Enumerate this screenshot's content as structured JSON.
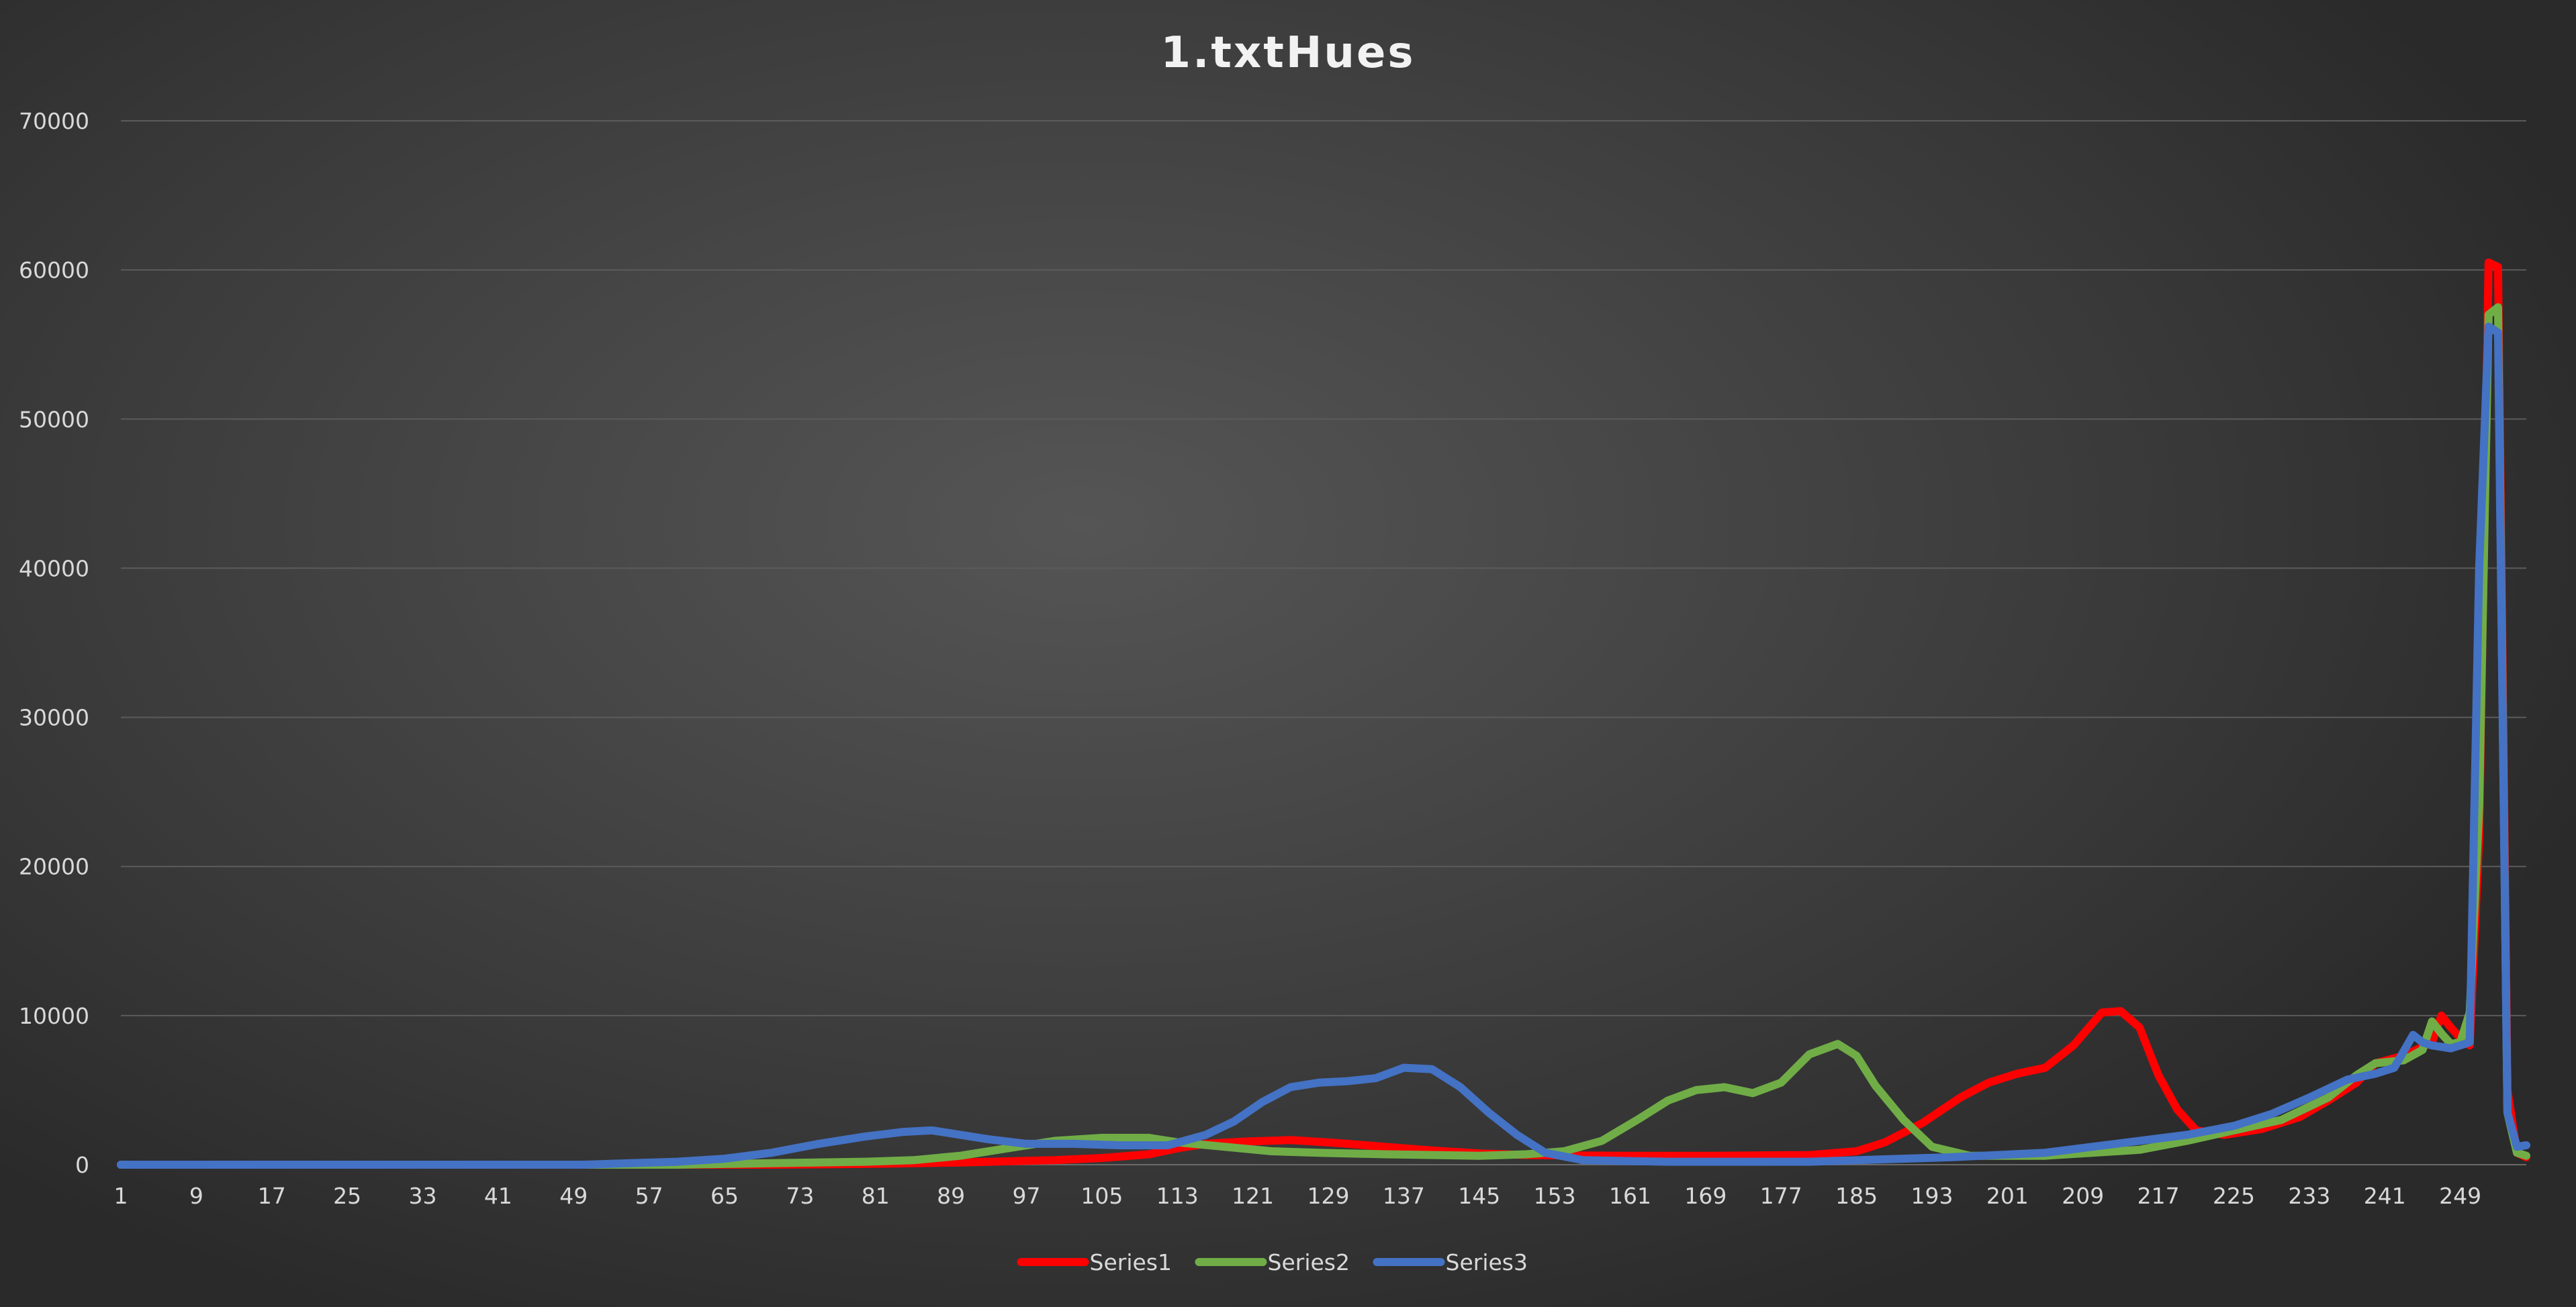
{
  "chart_data": {
    "type": "line",
    "title": "1.txtHues",
    "xlabel": "",
    "ylabel": "",
    "ylim": [
      0,
      70000
    ],
    "y_ticks": [
      0,
      10000,
      20000,
      30000,
      40000,
      50000,
      60000,
      70000
    ],
    "x_range": [
      1,
      256
    ],
    "x_tick_labels": [
      1,
      9,
      17,
      25,
      33,
      41,
      49,
      57,
      65,
      73,
      81,
      89,
      97,
      105,
      113,
      121,
      129,
      137,
      145,
      153,
      161,
      169,
      177,
      185,
      193,
      201,
      209,
      217,
      225,
      233,
      241,
      249
    ],
    "grid": "horizontal",
    "legend_position": "bottom",
    "colors": {
      "Series1": "#ff0000",
      "Series2": "#70ad47",
      "Series3": "#4472c4"
    },
    "series": [
      {
        "name": "Series1",
        "points": [
          [
            1,
            0
          ],
          [
            50,
            0
          ],
          [
            70,
            0
          ],
          [
            80,
            50
          ],
          [
            90,
            150
          ],
          [
            100,
            300
          ],
          [
            105,
            450
          ],
          [
            110,
            700
          ],
          [
            113,
            1100
          ],
          [
            116,
            1400
          ],
          [
            120,
            1550
          ],
          [
            125,
            1650
          ],
          [
            130,
            1450
          ],
          [
            135,
            1200
          ],
          [
            140,
            950
          ],
          [
            145,
            750
          ],
          [
            150,
            650
          ],
          [
            160,
            600
          ],
          [
            170,
            600
          ],
          [
            180,
            650
          ],
          [
            185,
            900
          ],
          [
            188,
            1500
          ],
          [
            192,
            2800
          ],
          [
            196,
            4500
          ],
          [
            199,
            5500
          ],
          [
            202,
            6100
          ],
          [
            205,
            6500
          ],
          [
            208,
            8000
          ],
          [
            211,
            10200
          ],
          [
            213,
            10300
          ],
          [
            215,
            9200
          ],
          [
            217,
            6000
          ],
          [
            219,
            3700
          ],
          [
            221,
            2300
          ],
          [
            224,
            2000
          ],
          [
            228,
            2400
          ],
          [
            232,
            3200
          ],
          [
            235,
            4300
          ],
          [
            238,
            5500
          ],
          [
            240,
            6800
          ],
          [
            243,
            7300
          ],
          [
            246,
            8200
          ],
          [
            247,
            10000
          ],
          [
            248,
            9200
          ],
          [
            249,
            8500
          ],
          [
            250,
            8000
          ],
          [
            251,
            22000
          ],
          [
            252,
            60500
          ],
          [
            253,
            60200
          ],
          [
            254,
            5000
          ],
          [
            255,
            800
          ],
          [
            256,
            500
          ]
        ]
      },
      {
        "name": "Series2",
        "points": [
          [
            1,
            0
          ],
          [
            60,
            0
          ],
          [
            70,
            100
          ],
          [
            80,
            200
          ],
          [
            85,
            300
          ],
          [
            90,
            600
          ],
          [
            95,
            1100
          ],
          [
            100,
            1600
          ],
          [
            105,
            1800
          ],
          [
            110,
            1800
          ],
          [
            113,
            1500
          ],
          [
            118,
            1200
          ],
          [
            123,
            900
          ],
          [
            128,
            800
          ],
          [
            135,
            700
          ],
          [
            145,
            600
          ],
          [
            150,
            700
          ],
          [
            154,
            900
          ],
          [
            158,
            1600
          ],
          [
            162,
            3100
          ],
          [
            165,
            4300
          ],
          [
            168,
            5000
          ],
          [
            171,
            5200
          ],
          [
            174,
            4800
          ],
          [
            177,
            5500
          ],
          [
            180,
            7400
          ],
          [
            183,
            8100
          ],
          [
            185,
            7300
          ],
          [
            187,
            5300
          ],
          [
            190,
            3000
          ],
          [
            193,
            1200
          ],
          [
            197,
            600
          ],
          [
            205,
            600
          ],
          [
            215,
            1000
          ],
          [
            220,
            1600
          ],
          [
            225,
            2300
          ],
          [
            230,
            3000
          ],
          [
            235,
            4500
          ],
          [
            238,
            6000
          ],
          [
            240,
            6800
          ],
          [
            243,
            7000
          ],
          [
            245,
            7700
          ],
          [
            246,
            9600
          ],
          [
            247,
            8800
          ],
          [
            248,
            8100
          ],
          [
            249,
            8200
          ],
          [
            250,
            10200
          ],
          [
            251,
            24000
          ],
          [
            252,
            57000
          ],
          [
            253,
            57500
          ],
          [
            254,
            3500
          ],
          [
            255,
            800
          ],
          [
            256,
            600
          ]
        ]
      },
      {
        "name": "Series3",
        "points": [
          [
            1,
            0
          ],
          [
            50,
            0
          ],
          [
            55,
            100
          ],
          [
            60,
            200
          ],
          [
            65,
            400
          ],
          [
            70,
            800
          ],
          [
            75,
            1400
          ],
          [
            80,
            1900
          ],
          [
            84,
            2200
          ],
          [
            87,
            2300
          ],
          [
            90,
            2000
          ],
          [
            93,
            1700
          ],
          [
            97,
            1400
          ],
          [
            102,
            1400
          ],
          [
            107,
            1300
          ],
          [
            112,
            1300
          ],
          [
            116,
            2000
          ],
          [
            119,
            2900
          ],
          [
            122,
            4200
          ],
          [
            125,
            5200
          ],
          [
            128,
            5500
          ],
          [
            131,
            5600
          ],
          [
            134,
            5800
          ],
          [
            137,
            6500
          ],
          [
            140,
            6400
          ],
          [
            143,
            5200
          ],
          [
            146,
            3500
          ],
          [
            149,
            2000
          ],
          [
            152,
            800
          ],
          [
            156,
            300
          ],
          [
            165,
            200
          ],
          [
            180,
            200
          ],
          [
            195,
            500
          ],
          [
            205,
            800
          ],
          [
            210,
            1200
          ],
          [
            215,
            1600
          ],
          [
            220,
            2000
          ],
          [
            225,
            2600
          ],
          [
            229,
            3400
          ],
          [
            233,
            4500
          ],
          [
            237,
            5700
          ],
          [
            240,
            6100
          ],
          [
            242,
            6500
          ],
          [
            244,
            8700
          ],
          [
            245,
            8200
          ],
          [
            246,
            8000
          ],
          [
            248,
            7800
          ],
          [
            249,
            8000
          ],
          [
            250,
            8200
          ],
          [
            251,
            40000
          ],
          [
            252,
            56200
          ],
          [
            253,
            55800
          ],
          [
            254,
            3500
          ],
          [
            255,
            1200
          ],
          [
            256,
            1300
          ]
        ]
      }
    ]
  }
}
